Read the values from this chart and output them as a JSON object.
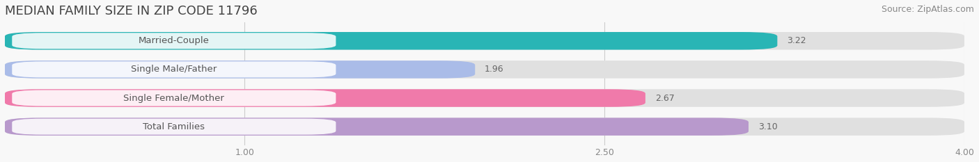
{
  "title": "MEDIAN FAMILY SIZE IN ZIP CODE 11796",
  "source": "Source: ZipAtlas.com",
  "categories": [
    "Married-Couple",
    "Single Male/Father",
    "Single Female/Mother",
    "Total Families"
  ],
  "values": [
    3.22,
    1.96,
    2.67,
    3.1
  ],
  "bar_colors": [
    "#29b5b5",
    "#aabce8",
    "#f07aaa",
    "#b899cc"
  ],
  "bar_bg_color": "#e0e0e0",
  "xmin": 0.0,
  "xmax": 4.0,
  "xticks": [
    1.0,
    2.5,
    4.0
  ],
  "xtick_labels": [
    "1.00",
    "2.50",
    "4.00"
  ],
  "background_color": "#f8f8f8",
  "bar_height": 0.62,
  "label_color": "#555555",
  "value_color": "#666666",
  "title_fontsize": 13,
  "source_fontsize": 9,
  "label_fontsize": 9.5,
  "value_fontsize": 9,
  "tick_fontsize": 9
}
